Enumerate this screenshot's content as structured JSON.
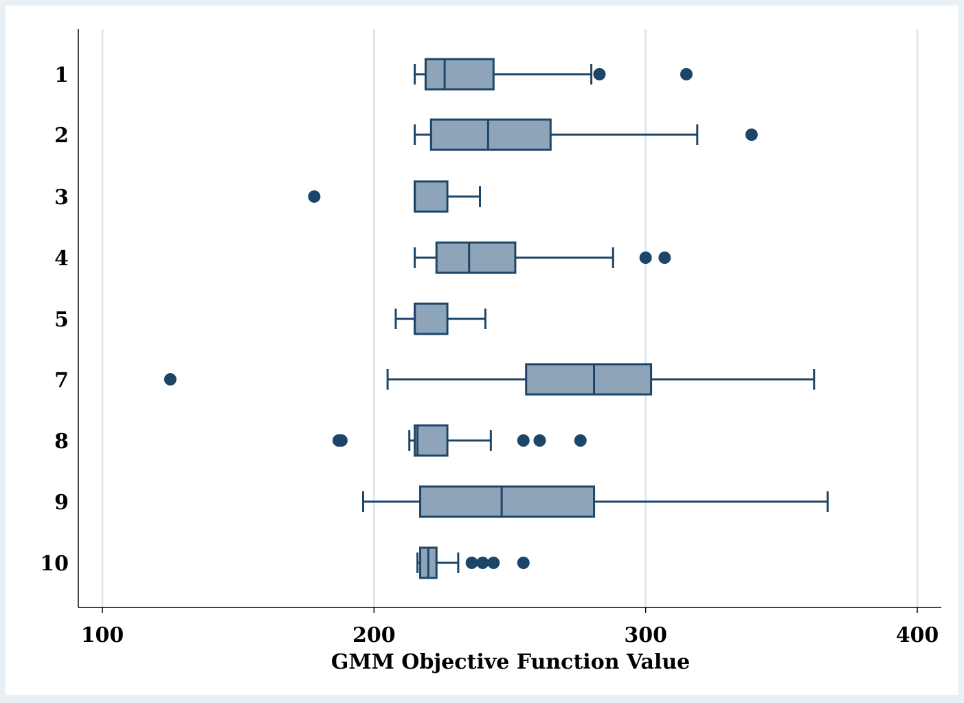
{
  "chart_data": {
    "type": "box",
    "orientation": "horizontal",
    "title": "",
    "xlabel": "GMM Objective Function Value",
    "ylabel": "",
    "xlim": [
      91,
      409
    ],
    "xticks": [
      100,
      200,
      300,
      400
    ],
    "xtick_labels": [
      "100",
      "200",
      "300",
      "400"
    ],
    "grid": "vertical",
    "legend": "none",
    "colors": {
      "box_fill": "#8ea4b8",
      "stroke": "#1c4567",
      "outlier": "#1c4567",
      "grid": "#dde7ee",
      "plot_bg": "#ffffff",
      "outer_bg": "#e9eff2"
    },
    "categories": [
      "1",
      "2",
      "3",
      "4",
      "5",
      "7",
      "8",
      "9",
      "10"
    ],
    "boxes": [
      {
        "label": "1",
        "whisker_low": 215,
        "q1": 219,
        "median": 226,
        "q3": 244,
        "whisker_high": 280,
        "outliers": [
          283,
          315
        ]
      },
      {
        "label": "2",
        "whisker_low": 215,
        "q1": 221,
        "median": 242,
        "q3": 265,
        "whisker_high": 319,
        "outliers": [
          339
        ]
      },
      {
        "label": "3",
        "whisker_low": 215,
        "q1": 215,
        "median": 215,
        "q3": 227,
        "whisker_high": 239,
        "outliers": [
          178
        ]
      },
      {
        "label": "4",
        "whisker_low": 215,
        "q1": 223,
        "median": 235,
        "q3": 252,
        "whisker_high": 288,
        "outliers": [
          300,
          307
        ]
      },
      {
        "label": "5",
        "whisker_low": 208,
        "q1": 215,
        "median": 215,
        "q3": 227,
        "whisker_high": 241,
        "outliers": []
      },
      {
        "label": "7",
        "whisker_low": 205,
        "q1": 256,
        "median": 281,
        "q3": 302,
        "whisker_high": 362,
        "outliers": [
          125
        ]
      },
      {
        "label": "8",
        "whisker_low": 213,
        "q1": 215,
        "median": 216,
        "q3": 227,
        "whisker_high": 243,
        "outliers": [
          187,
          188,
          255,
          261,
          276
        ]
      },
      {
        "label": "9",
        "whisker_low": 196,
        "q1": 217,
        "median": 247,
        "q3": 281,
        "whisker_high": 367,
        "outliers": []
      },
      {
        "label": "10",
        "whisker_low": 216,
        "q1": 217,
        "median": 220,
        "q3": 223,
        "whisker_high": 231,
        "outliers": [
          236,
          240,
          244,
          255
        ]
      }
    ]
  }
}
